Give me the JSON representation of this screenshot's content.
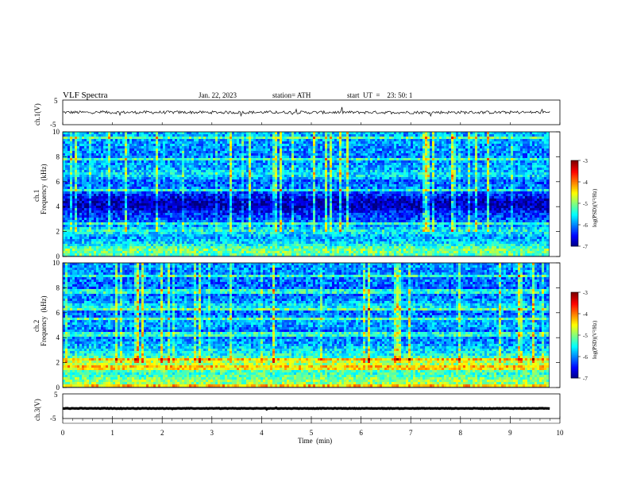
{
  "header": {
    "title": "VLF  Spectra",
    "date": "Jan. 22, 2023",
    "station": "station= ATH",
    "start": "start  UT  =    23: 50: 1"
  },
  "chart_data": [
    {
      "type": "line",
      "id": "ch1-waveform",
      "ylabel": "ch.1(V)",
      "ylim": [
        -5,
        5
      ],
      "yticks": [
        "5",
        "-5"
      ],
      "xlim": [
        0,
        10
      ],
      "description_values": {
        "baseline_v": 0.0,
        "noise_amplitude_v": 0.6
      }
    },
    {
      "type": "heatmap",
      "id": "ch1-spectrogram",
      "ylabel_line1": "ch.1",
      "ylabel_line2": "Frequency  (kHz)",
      "ylim": [
        0,
        10
      ],
      "yticks": [
        "0",
        "2",
        "4",
        "6",
        "8",
        "10"
      ],
      "xlim": [
        0,
        9.8
      ],
      "colorbar": {
        "label": "log(PSD)(V²/Hz)",
        "ticks": [
          "-3",
          "-4",
          "-5",
          "-6",
          "-7"
        ],
        "range": [
          -7,
          -3
        ]
      },
      "level_by_frequency_khz": [
        [
          0.0,
          -5.2
        ],
        [
          0.5,
          -5.0
        ],
        [
          1.0,
          -5.6
        ],
        [
          1.5,
          -5.9
        ],
        [
          2.0,
          -5.4
        ],
        [
          2.5,
          -6.0
        ],
        [
          3.0,
          -6.2
        ],
        [
          3.5,
          -6.4
        ],
        [
          4.0,
          -6.8
        ],
        [
          4.5,
          -6.7
        ],
        [
          5.0,
          -6.3
        ],
        [
          5.5,
          -6.0
        ],
        [
          6.0,
          -6.2
        ],
        [
          6.5,
          -5.5
        ],
        [
          7.0,
          -5.8
        ],
        [
          8.0,
          -6.0
        ],
        [
          9.0,
          -5.9
        ],
        [
          10.0,
          -5.8
        ]
      ]
    },
    {
      "type": "heatmap",
      "id": "ch2-spectrogram",
      "ylabel_line1": "ch.2",
      "ylabel_line2": "Frequency  (kHz)",
      "ylim": [
        0,
        10
      ],
      "yticks": [
        "0",
        "2",
        "4",
        "6",
        "8",
        "10"
      ],
      "xlim": [
        0,
        9.8
      ],
      "colorbar": {
        "label": "log(PSD)(V²/Hz)",
        "ticks": [
          "-3",
          "-4",
          "-5",
          "-6",
          "-7"
        ],
        "range": [
          -7,
          -3
        ]
      },
      "level_by_frequency_khz": [
        [
          0.0,
          -5.0
        ],
        [
          0.5,
          -4.9
        ],
        [
          1.0,
          -5.3
        ],
        [
          1.5,
          -5.1
        ],
        [
          2.0,
          -4.7
        ],
        [
          2.5,
          -5.4
        ],
        [
          3.0,
          -5.6
        ],
        [
          3.5,
          -5.9
        ],
        [
          4.0,
          -6.0
        ],
        [
          4.5,
          -6.1
        ],
        [
          5.0,
          -5.8
        ],
        [
          5.5,
          -5.9
        ],
        [
          6.0,
          -6.1
        ],
        [
          6.5,
          -5.5
        ],
        [
          7.0,
          -6.0
        ],
        [
          8.0,
          -6.1
        ],
        [
          9.0,
          -6.0
        ],
        [
          10.0,
          -5.9
        ]
      ]
    },
    {
      "type": "line",
      "id": "ch3-waveform",
      "ylabel": "ch.3(V)",
      "ylim": [
        -5,
        5
      ],
      "yticks": [
        "5",
        "-5"
      ],
      "xlim": [
        0,
        10
      ],
      "description_values": {
        "baseline_v": -0.9,
        "noise_amplitude_v": 0.1
      }
    }
  ],
  "time_axis": {
    "label": "Time  (min)",
    "ticks": [
      "0",
      "1",
      "2",
      "3",
      "4",
      "5",
      "6",
      "7",
      "8",
      "9",
      "10"
    ],
    "range": [
      0,
      10
    ]
  }
}
